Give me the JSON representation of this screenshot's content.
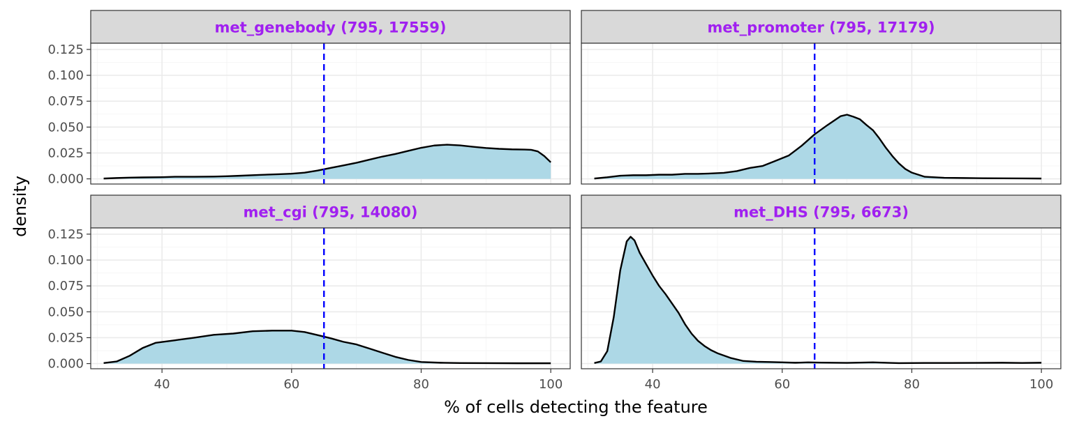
{
  "chart_data": {
    "type": "area",
    "ylabel": "density",
    "xlabel": "% of cells detecting the feature",
    "xlim": [
      29,
      103
    ],
    "ylim": [
      -0.005,
      0.131
    ],
    "x_ticks": [
      40,
      60,
      80,
      100
    ],
    "y_ticks": [
      0.0,
      0.025,
      0.05,
      0.075,
      0.1,
      0.125
    ],
    "y_tick_labels": [
      "0.000",
      "0.025",
      "0.050",
      "0.075",
      "0.100",
      "0.125"
    ],
    "threshold_x": 65,
    "threshold_style": "dashed",
    "grid": true,
    "colors": {
      "fill": "#add8e6",
      "line": "#000000",
      "threshold": "#0000ff",
      "strip_text": "#a020f0",
      "strip_bg": "#d9d9d9"
    },
    "panels": [
      {
        "strip": "met_genebody (795, 17559)",
        "points": [
          [
            31,
            0.0003
          ],
          [
            33,
            0.0008
          ],
          [
            35,
            0.0012
          ],
          [
            37,
            0.0014
          ],
          [
            40,
            0.0016
          ],
          [
            42,
            0.002
          ],
          [
            45,
            0.002
          ],
          [
            48,
            0.0022
          ],
          [
            50,
            0.0025
          ],
          [
            52,
            0.003
          ],
          [
            55,
            0.0038
          ],
          [
            58,
            0.0045
          ],
          [
            60,
            0.005
          ],
          [
            62,
            0.006
          ],
          [
            64,
            0.008
          ],
          [
            66,
            0.0105
          ],
          [
            68,
            0.013
          ],
          [
            70,
            0.0155
          ],
          [
            72,
            0.0185
          ],
          [
            74,
            0.0215
          ],
          [
            76,
            0.024
          ],
          [
            78,
            0.027
          ],
          [
            80,
            0.03
          ],
          [
            82,
            0.0322
          ],
          [
            84,
            0.033
          ],
          [
            86,
            0.0323
          ],
          [
            88,
            0.031
          ],
          [
            90,
            0.0298
          ],
          [
            92,
            0.029
          ],
          [
            94,
            0.0285
          ],
          [
            96,
            0.0283
          ],
          [
            97,
            0.028
          ],
          [
            98,
            0.0265
          ],
          [
            99,
            0.022
          ],
          [
            100,
            0.016
          ]
        ]
      },
      {
        "strip": "met_promoter (795, 17179)",
        "points": [
          [
            31,
            0.0003
          ],
          [
            33,
            0.0015
          ],
          [
            35,
            0.003
          ],
          [
            37,
            0.0035
          ],
          [
            39,
            0.0035
          ],
          [
            41,
            0.004
          ],
          [
            43,
            0.004
          ],
          [
            45,
            0.0048
          ],
          [
            47,
            0.0048
          ],
          [
            49,
            0.0052
          ],
          [
            51,
            0.0058
          ],
          [
            53,
            0.0075
          ],
          [
            55,
            0.0105
          ],
          [
            57,
            0.0125
          ],
          [
            59,
            0.0175
          ],
          [
            61,
            0.0225
          ],
          [
            63,
            0.032
          ],
          [
            65,
            0.043
          ],
          [
            67,
            0.052
          ],
          [
            69,
            0.0605
          ],
          [
            70,
            0.062
          ],
          [
            71,
            0.06
          ],
          [
            72,
            0.0575
          ],
          [
            73,
            0.052
          ],
          [
            74,
            0.047
          ],
          [
            75,
            0.039
          ],
          [
            76,
            0.03
          ],
          [
            77,
            0.022
          ],
          [
            78,
            0.015
          ],
          [
            79,
            0.0095
          ],
          [
            80,
            0.006
          ],
          [
            82,
            0.002
          ],
          [
            85,
            0.001
          ],
          [
            88,
            0.0008
          ],
          [
            91,
            0.0006
          ],
          [
            94,
            0.0005
          ],
          [
            97,
            0.0004
          ],
          [
            100,
            0.0003
          ]
        ]
      },
      {
        "strip": "met_cgi (795, 14080)",
        "points": [
          [
            31,
            0.0005
          ],
          [
            33,
            0.002
          ],
          [
            35,
            0.0075
          ],
          [
            37,
            0.015
          ],
          [
            39,
            0.02
          ],
          [
            42,
            0.0225
          ],
          [
            45,
            0.025
          ],
          [
            48,
            0.0278
          ],
          [
            51,
            0.029
          ],
          [
            54,
            0.0312
          ],
          [
            57,
            0.0318
          ],
          [
            60,
            0.0318
          ],
          [
            62,
            0.0305
          ],
          [
            64,
            0.0275
          ],
          [
            66,
            0.0245
          ],
          [
            68,
            0.021
          ],
          [
            70,
            0.0185
          ],
          [
            72,
            0.0145
          ],
          [
            74,
            0.0105
          ],
          [
            76,
            0.0065
          ],
          [
            78,
            0.0035
          ],
          [
            80,
            0.0015
          ],
          [
            83,
            0.0008
          ],
          [
            86,
            0.0005
          ],
          [
            90,
            0.0004
          ],
          [
            95,
            0.0003
          ],
          [
            100,
            0.0003
          ]
        ]
      },
      {
        "strip": "met_DHS (795, 6673)",
        "points": [
          [
            31,
            0.0005
          ],
          [
            32,
            0.002
          ],
          [
            33,
            0.012
          ],
          [
            34,
            0.045
          ],
          [
            35,
            0.09
          ],
          [
            36,
            0.118
          ],
          [
            36.6,
            0.1225
          ],
          [
            37.2,
            0.119
          ],
          [
            38,
            0.107
          ],
          [
            39,
            0.096
          ],
          [
            40,
            0.085
          ],
          [
            41,
            0.075
          ],
          [
            42,
            0.067
          ],
          [
            43,
            0.058
          ],
          [
            44,
            0.049
          ],
          [
            45,
            0.038
          ],
          [
            46,
            0.029
          ],
          [
            47,
            0.022
          ],
          [
            48,
            0.017
          ],
          [
            49,
            0.013
          ],
          [
            50,
            0.01
          ],
          [
            52,
            0.0055
          ],
          [
            54,
            0.0025
          ],
          [
            56,
            0.0018
          ],
          [
            58,
            0.0015
          ],
          [
            60,
            0.0012
          ],
          [
            62,
            0.0008
          ],
          [
            64,
            0.0012
          ],
          [
            66,
            0.0009
          ],
          [
            70,
            0.0007
          ],
          [
            74,
            0.0012
          ],
          [
            78,
            0.0004
          ],
          [
            82,
            0.0006
          ],
          [
            86,
            0.0006
          ],
          [
            90,
            0.0007
          ],
          [
            94,
            0.0008
          ],
          [
            97,
            0.0006
          ],
          [
            100,
            0.0008
          ]
        ]
      }
    ]
  }
}
